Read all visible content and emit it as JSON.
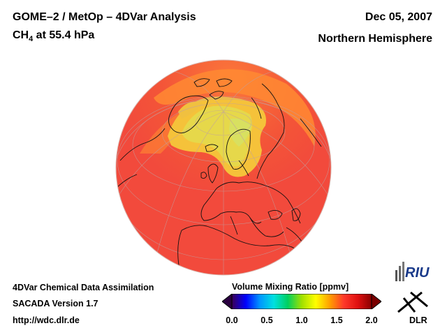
{
  "header": {
    "title_line1": "GOME–2 / MetOp – 4DVar Analysis",
    "species": "CH",
    "species_subscript": "4",
    "level": " at 55.4 hPa",
    "date": "Dec 05, 2007",
    "region": "Northern Hemisphere"
  },
  "footer": {
    "line1": "4DVar Chemical Data Assimilation",
    "line2": "SACADA Version 1.7",
    "line3": "http://wdc.dlr.de"
  },
  "colorbar": {
    "title": "Volume Mixing Ratio [ppmv]",
    "ticks": [
      "0.0",
      "0.5",
      "1.0",
      "1.5",
      "2.0"
    ],
    "range": [
      0.0,
      2.0
    ],
    "colors": [
      "#3a0057",
      "#0000ff",
      "#0096ff",
      "#00e0e0",
      "#00d060",
      "#a0e000",
      "#ffff00",
      "#ffa000",
      "#ff3a2a",
      "#e01010",
      "#8a0000"
    ]
  },
  "logos": {
    "riu": "RIU",
    "dlr": "DLR"
  },
  "map": {
    "projection": "orthographic",
    "background_color": "#f24a3c",
    "high_color": "#ffd24a"
  }
}
